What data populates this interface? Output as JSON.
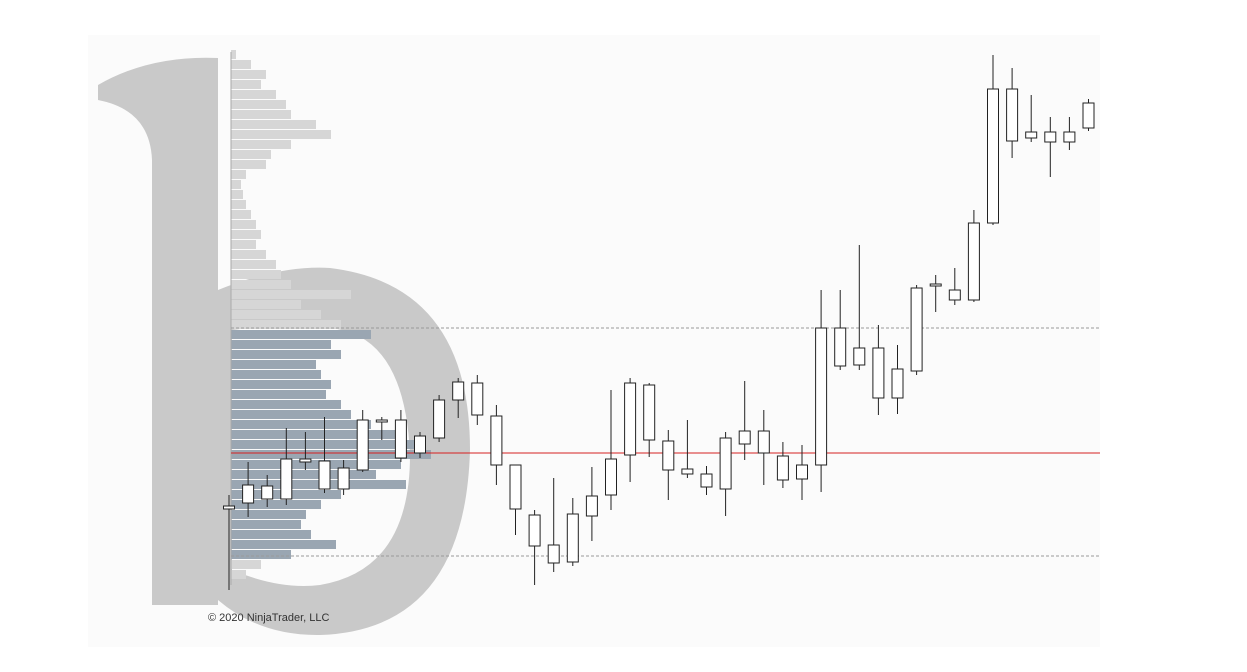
{
  "chart_data": {
    "type": "candlestick",
    "annotation": "© 2020 NinjaTrader, LLC",
    "ylim": [
      0,
      560
    ],
    "open": [
      91,
      97,
      101,
      101,
      138,
      139,
      111,
      130,
      178,
      142,
      147,
      162,
      200,
      217,
      184,
      135,
      85,
      37,
      38,
      84,
      105,
      145,
      215,
      159,
      131,
      126,
      111,
      156,
      169,
      144,
      121,
      135,
      272,
      252,
      252,
      202,
      229,
      314,
      300,
      300,
      377,
      511,
      468,
      468,
      468,
      472
    ],
    "close": [
      94,
      115,
      114,
      141,
      141,
      111,
      132,
      180,
      180,
      180,
      164,
      200,
      218,
      185,
      135,
      91,
      54,
      55,
      86,
      104,
      141,
      217,
      160,
      130,
      126,
      113,
      162,
      169,
      147,
      120,
      135,
      272,
      234,
      235,
      202,
      231,
      312,
      316,
      310,
      377,
      511,
      459,
      462,
      458,
      458,
      497
    ],
    "high": [
      105,
      138,
      125,
      172,
      168,
      183,
      140,
      190,
      183,
      190,
      168,
      205,
      222,
      225,
      195,
      135,
      90,
      122,
      102,
      133,
      210,
      222,
      217,
      170,
      180,
      134,
      168,
      219,
      190,
      158,
      155,
      310,
      310,
      355,
      275,
      255,
      315,
      325,
      332,
      390,
      545,
      532,
      505,
      483,
      483,
      501
    ],
    "low": [
      10,
      83,
      93,
      95,
      130,
      107,
      105,
      128,
      160,
      138,
      142,
      158,
      182,
      175,
      115,
      65,
      15,
      28,
      34,
      59,
      90,
      118,
      143,
      100,
      122,
      105,
      84,
      140,
      115,
      112,
      100,
      108,
      230,
      230,
      185,
      186,
      225,
      288,
      295,
      298,
      375,
      442,
      458,
      423,
      450,
      469
    ],
    "color": "#222222",
    "profile": {
      "levels": [
        545,
        535,
        525,
        515,
        505,
        495,
        485,
        475,
        465,
        455,
        445,
        435,
        425,
        415,
        405,
        395,
        385,
        375,
        365,
        355,
        345,
        335,
        325,
        315,
        305,
        295,
        285,
        275,
        265,
        255,
        245,
        235,
        225,
        215,
        205,
        195,
        185,
        175,
        165,
        155,
        145,
        135,
        125,
        115,
        105,
        95,
        85,
        75,
        65,
        55,
        45,
        35,
        25
      ],
      "volumes": [
        5,
        20,
        35,
        30,
        45,
        55,
        60,
        85,
        100,
        60,
        40,
        35,
        15,
        10,
        12,
        15,
        20,
        25,
        30,
        25,
        35,
        45,
        50,
        60,
        120,
        70,
        90,
        110,
        140,
        100,
        110,
        85,
        90,
        100,
        95,
        110,
        120,
        140,
        170,
        195,
        200,
        170,
        145,
        175,
        110,
        90,
        75,
        70,
        80,
        105,
        60,
        30,
        15
      ],
      "color": "#d6d6d6",
      "value_area_color": "#9aa6b2"
    },
    "lines": [
      {
        "value": 272,
        "color": "#999999",
        "dashed": true
      },
      {
        "value": 147,
        "color": "#d62020",
        "dashed": false
      },
      {
        "value": 44,
        "color": "#999999",
        "dashed": true
      }
    ]
  }
}
